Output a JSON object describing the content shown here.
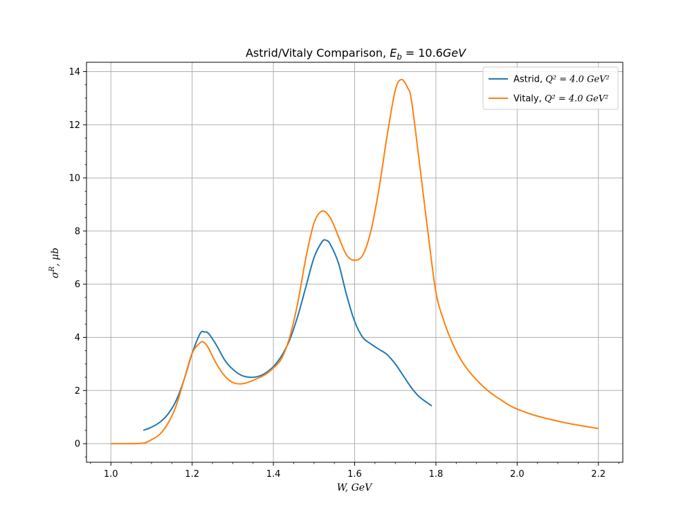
{
  "chart_data": {
    "type": "line",
    "title": "Astrid/Vitaly Comparison, E_b = 10.6GeV",
    "xlabel": "W, GeV",
    "ylabel": "σ^R, μb",
    "xlim": [
      0.94,
      2.26
    ],
    "ylim": [
      -0.7,
      14.35
    ],
    "xticks": [
      1.0,
      1.2,
      1.4,
      1.6,
      1.8,
      2.0,
      2.2
    ],
    "yticks": [
      0,
      2,
      4,
      6,
      8,
      10,
      12,
      14
    ],
    "grid": true,
    "legend_position": "upper-right",
    "series": [
      {
        "name": "Astrid, Q² = 4.0 GeV²",
        "color": "#1f77b4",
        "points": [
          [
            1.08,
            0.5
          ],
          [
            1.1,
            0.62
          ],
          [
            1.12,
            0.8
          ],
          [
            1.14,
            1.1
          ],
          [
            1.16,
            1.6
          ],
          [
            1.18,
            2.4
          ],
          [
            1.2,
            3.4
          ],
          [
            1.22,
            4.15
          ],
          [
            1.23,
            4.2
          ],
          [
            1.24,
            4.15
          ],
          [
            1.26,
            3.7
          ],
          [
            1.28,
            3.15
          ],
          [
            1.3,
            2.8
          ],
          [
            1.32,
            2.58
          ],
          [
            1.34,
            2.5
          ],
          [
            1.36,
            2.52
          ],
          [
            1.38,
            2.65
          ],
          [
            1.4,
            2.9
          ],
          [
            1.42,
            3.3
          ],
          [
            1.44,
            3.9
          ],
          [
            1.46,
            4.8
          ],
          [
            1.48,
            5.9
          ],
          [
            1.5,
            7.0
          ],
          [
            1.52,
            7.6
          ],
          [
            1.53,
            7.65
          ],
          [
            1.54,
            7.5
          ],
          [
            1.56,
            6.8
          ],
          [
            1.58,
            5.6
          ],
          [
            1.6,
            4.6
          ],
          [
            1.62,
            4.0
          ],
          [
            1.64,
            3.75
          ],
          [
            1.66,
            3.55
          ],
          [
            1.68,
            3.35
          ],
          [
            1.7,
            3.0
          ],
          [
            1.72,
            2.55
          ],
          [
            1.74,
            2.1
          ],
          [
            1.76,
            1.75
          ],
          [
            1.79,
            1.42
          ]
        ]
      },
      {
        "name": "Vitaly, Q² = 4.0 GeV²",
        "color": "#ff7f0e",
        "points": [
          [
            1.0,
            0.0
          ],
          [
            1.04,
            0.0
          ],
          [
            1.08,
            0.02
          ],
          [
            1.1,
            0.15
          ],
          [
            1.12,
            0.35
          ],
          [
            1.14,
            0.75
          ],
          [
            1.16,
            1.4
          ],
          [
            1.18,
            2.4
          ],
          [
            1.2,
            3.4
          ],
          [
            1.22,
            3.8
          ],
          [
            1.23,
            3.8
          ],
          [
            1.24,
            3.6
          ],
          [
            1.26,
            3.0
          ],
          [
            1.28,
            2.55
          ],
          [
            1.3,
            2.3
          ],
          [
            1.32,
            2.25
          ],
          [
            1.34,
            2.32
          ],
          [
            1.36,
            2.45
          ],
          [
            1.38,
            2.6
          ],
          [
            1.4,
            2.85
          ],
          [
            1.42,
            3.2
          ],
          [
            1.44,
            4.0
          ],
          [
            1.46,
            5.3
          ],
          [
            1.48,
            7.0
          ],
          [
            1.5,
            8.3
          ],
          [
            1.52,
            8.75
          ],
          [
            1.54,
            8.5
          ],
          [
            1.56,
            7.8
          ],
          [
            1.58,
            7.1
          ],
          [
            1.6,
            6.9
          ],
          [
            1.62,
            7.1
          ],
          [
            1.64,
            8.0
          ],
          [
            1.66,
            9.6
          ],
          [
            1.68,
            11.6
          ],
          [
            1.7,
            13.3
          ],
          [
            1.715,
            13.7
          ],
          [
            1.73,
            13.4
          ],
          [
            1.74,
            12.9
          ],
          [
            1.76,
            10.5
          ],
          [
            1.78,
            8.0
          ],
          [
            1.8,
            5.7
          ],
          [
            1.82,
            4.6
          ],
          [
            1.84,
            3.8
          ],
          [
            1.86,
            3.2
          ],
          [
            1.88,
            2.75
          ],
          [
            1.9,
            2.4
          ],
          [
            1.92,
            2.1
          ],
          [
            1.94,
            1.85
          ],
          [
            1.96,
            1.65
          ],
          [
            1.98,
            1.45
          ],
          [
            2.0,
            1.3
          ],
          [
            2.04,
            1.08
          ],
          [
            2.08,
            0.92
          ],
          [
            2.12,
            0.78
          ],
          [
            2.16,
            0.67
          ],
          [
            2.2,
            0.57
          ]
        ]
      }
    ]
  }
}
